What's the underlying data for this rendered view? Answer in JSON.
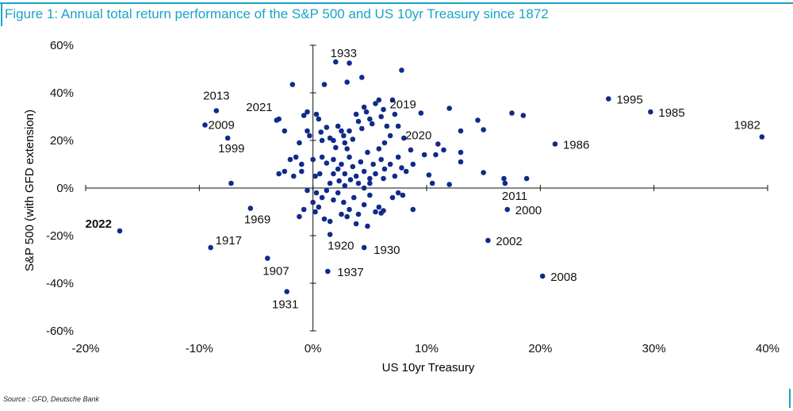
{
  "figure": {
    "title": "Figure 1: Annual total return performance of the S&P 500 and US 10yr Treasury since 1872",
    "source": "Source : GFD, Deutsche Bank",
    "accent_color": "#1aa3c9",
    "point_color": "#102a8c",
    "label_color": "#111111"
  },
  "chart_data": {
    "type": "scatter",
    "title": "Figure 1: Annual total return performance of the S&P 500 and US 10yr Treasury since 1872",
    "xlabel": "US 10yr Treasury",
    "ylabel": "S&P 500 (with GFD extension)",
    "xlim": [
      -0.2,
      0.4
    ],
    "ylim": [
      -0.6,
      0.6
    ],
    "x_ticks": [
      -0.2,
      -0.1,
      0,
      0.1,
      0.2,
      0.3,
      0.4
    ],
    "x_tick_labels": [
      "-20%",
      "-10%",
      "0%",
      "10%",
      "20%",
      "30%",
      "40%"
    ],
    "y_ticks": [
      0.6,
      0.4,
      0.2,
      0,
      -0.2,
      -0.4,
      -0.6
    ],
    "y_tick_labels": [
      "60%",
      "40%",
      "20%",
      "0%",
      "-20%",
      "-40%",
      "-60%"
    ],
    "grid": false,
    "axes_through_origin": true,
    "labeled_points": [
      {
        "label": "1933",
        "x": 0.02,
        "y": 0.53,
        "bold": false
      },
      {
        "label": "2013",
        "x": -0.085,
        "y": 0.325,
        "bold": false
      },
      {
        "label": "2021",
        "x": -0.03,
        "y": 0.29,
        "bold": false
      },
      {
        "label": "2009",
        "x": -0.095,
        "y": 0.265,
        "bold": false
      },
      {
        "label": "1999",
        "x": -0.075,
        "y": 0.21,
        "bold": false
      },
      {
        "label": "2019",
        "x": 0.095,
        "y": 0.315,
        "bold": false
      },
      {
        "label": "2020",
        "x": 0.11,
        "y": 0.185,
        "bold": false
      },
      {
        "label": "1995",
        "x": 0.26,
        "y": 0.375,
        "bold": false
      },
      {
        "label": "1985",
        "x": 0.297,
        "y": 0.32,
        "bold": false
      },
      {
        "label": "1982",
        "x": 0.395,
        "y": 0.215,
        "bold": false
      },
      {
        "label": "1986",
        "x": 0.213,
        "y": 0.185,
        "bold": false
      },
      {
        "label": "2011",
        "x": 0.169,
        "y": 0.02,
        "bold": false
      },
      {
        "label": "2000",
        "x": 0.171,
        "y": -0.09,
        "bold": false
      },
      {
        "label": "2002",
        "x": 0.154,
        "y": -0.22,
        "bold": false
      },
      {
        "label": "2008",
        "x": 0.202,
        "y": -0.37,
        "bold": false
      },
      {
        "label": "1969",
        "x": -0.055,
        "y": -0.085,
        "bold": false
      },
      {
        "label": "2022",
        "x": -0.17,
        "y": -0.18,
        "bold": true
      },
      {
        "label": "1917",
        "x": -0.09,
        "y": -0.25,
        "bold": false
      },
      {
        "label": "1920",
        "x": 0.015,
        "y": -0.195,
        "bold": false
      },
      {
        "label": "1930",
        "x": 0.045,
        "y": -0.25,
        "bold": false
      },
      {
        "label": "1907",
        "x": -0.04,
        "y": -0.295,
        "bold": false
      },
      {
        "label": "1937",
        "x": 0.013,
        "y": -0.35,
        "bold": false
      },
      {
        "label": "1931",
        "x": -0.023,
        "y": -0.435,
        "bold": false
      }
    ],
    "points": [
      [
        -0.018,
        0.435
      ],
      [
        0.01,
        0.435
      ],
      [
        0.03,
        0.445
      ],
      [
        0.043,
        0.465
      ],
      [
        0.078,
        0.495
      ],
      [
        0.032,
        0.525
      ],
      [
        -0.008,
        0.305
      ],
      [
        -0.005,
        0.32
      ],
      [
        -0.032,
        0.285
      ],
      [
        -0.025,
        0.24
      ],
      [
        -0.012,
        0.19
      ],
      [
        -0.015,
        0.13
      ],
      [
        -0.005,
        0.24
      ],
      [
        -0.003,
        0.22
      ],
      [
        0.003,
        0.31
      ],
      [
        0.005,
        0.29
      ],
      [
        0.007,
        0.235
      ],
      [
        0.008,
        0.2
      ],
      [
        0.012,
        0.255
      ],
      [
        0.015,
        0.21
      ],
      [
        0.018,
        0.2
      ],
      [
        0.02,
        0.17
      ],
      [
        0.022,
        0.26
      ],
      [
        0.025,
        0.24
      ],
      [
        0.027,
        0.22
      ],
      [
        0.028,
        0.19
      ],
      [
        0.03,
        0.165
      ],
      [
        0.032,
        0.24
      ],
      [
        0.035,
        0.205
      ],
      [
        0.038,
        0.31
      ],
      [
        0.04,
        0.28
      ],
      [
        0.043,
        0.25
      ],
      [
        0.045,
        0.34
      ],
      [
        0.047,
        0.32
      ],
      [
        0.05,
        0.29
      ],
      [
        0.052,
        0.27
      ],
      [
        0.055,
        0.355
      ],
      [
        0.058,
        0.37
      ],
      [
        0.06,
        0.3
      ],
      [
        0.062,
        0.33
      ],
      [
        0.065,
        0.26
      ],
      [
        0.07,
        0.37
      ],
      [
        0.072,
        0.31
      ],
      [
        0.075,
        0.26
      ],
      [
        0.12,
        0.335
      ],
      [
        0.145,
        0.285
      ],
      [
        0.15,
        0.245
      ],
      [
        0.13,
        0.24
      ],
      [
        0.175,
        0.315
      ],
      [
        0.185,
        0.305
      ],
      [
        0.08,
        0.21
      ],
      [
        0.068,
        0.22
      ],
      [
        0.063,
        0.19
      ],
      [
        0.058,
        0.165
      ],
      [
        -0.02,
        0.12
      ],
      [
        -0.01,
        0.1
      ],
      [
        0.0,
        0.12
      ],
      [
        0.008,
        0.13
      ],
      [
        0.012,
        0.105
      ],
      [
        0.018,
        0.12
      ],
      [
        0.022,
        0.08
      ],
      [
        0.025,
        0.1
      ],
      [
        0.028,
        0.06
      ],
      [
        0.032,
        0.13
      ],
      [
        0.035,
        0.09
      ],
      [
        0.038,
        0.05
      ],
      [
        0.042,
        0.11
      ],
      [
        0.045,
        0.07
      ],
      [
        0.048,
        0.15
      ],
      [
        0.05,
        0.04
      ],
      [
        0.053,
        0.1
      ],
      [
        0.055,
        0.06
      ],
      [
        0.06,
        0.12
      ],
      [
        0.063,
        0.08
      ],
      [
        0.068,
        0.1
      ],
      [
        0.072,
        0.05
      ],
      [
        0.075,
        0.13
      ],
      [
        0.078,
        0.085
      ],
      [
        0.082,
        0.07
      ],
      [
        0.086,
        0.16
      ],
      [
        0.098,
        0.14
      ],
      [
        0.102,
        0.055
      ],
      [
        0.105,
        0.02
      ],
      [
        0.108,
        0.14
      ],
      [
        0.115,
        0.16
      ],
      [
        0.12,
        0.015
      ],
      [
        0.13,
        0.15
      ],
      [
        0.13,
        0.11
      ],
      [
        0.15,
        0.065
      ],
      [
        0.168,
        0.04
      ],
      [
        0.188,
        0.04
      ],
      [
        0.088,
        0.1
      ],
      [
        -0.025,
        0.07
      ],
      [
        -0.03,
        0.06
      ],
      [
        -0.017,
        0.05
      ],
      [
        -0.01,
        0.07
      ],
      [
        0.002,
        0.05
      ],
      [
        0.006,
        0.06
      ],
      [
        0.015,
        0.02
      ],
      [
        0.018,
        0.06
      ],
      [
        0.023,
        0.03
      ],
      [
        0.028,
        0.01
      ],
      [
        0.033,
        0.035
      ],
      [
        0.04,
        0.02
      ],
      [
        0.045,
        0.0
      ],
      [
        0.05,
        0.02
      ],
      [
        -0.072,
        0.02
      ],
      [
        0.062,
        0.04
      ],
      [
        -0.005,
        -0.01
      ],
      [
        0.003,
        -0.02
      ],
      [
        0.008,
        -0.04
      ],
      [
        0.012,
        -0.01
      ],
      [
        0.018,
        -0.05
      ],
      [
        0.022,
        -0.02
      ],
      [
        0.027,
        -0.06
      ],
      [
        0.032,
        -0.09
      ],
      [
        0.036,
        -0.04
      ],
      [
        0.04,
        -0.11
      ],
      [
        0.045,
        -0.07
      ],
      [
        0.05,
        -0.03
      ],
      [
        0.055,
        -0.1
      ],
      [
        0.058,
        -0.08
      ],
      [
        0.06,
        -0.105
      ],
      [
        0.062,
        -0.095
      ],
      [
        0.07,
        -0.04
      ],
      [
        0.075,
        -0.02
      ],
      [
        0.079,
        -0.03
      ],
      [
        0.088,
        -0.09
      ],
      [
        -0.012,
        -0.12
      ],
      [
        -0.008,
        -0.09
      ],
      [
        0.0,
        -0.06
      ],
      [
        0.005,
        -0.08
      ],
      [
        0.01,
        -0.13
      ],
      [
        0.015,
        -0.14
      ],
      [
        0.025,
        -0.11
      ],
      [
        0.03,
        -0.12
      ],
      [
        0.038,
        -0.15
      ],
      [
        0.048,
        -0.16
      ],
      [
        0.002,
        -0.1
      ]
    ]
  }
}
